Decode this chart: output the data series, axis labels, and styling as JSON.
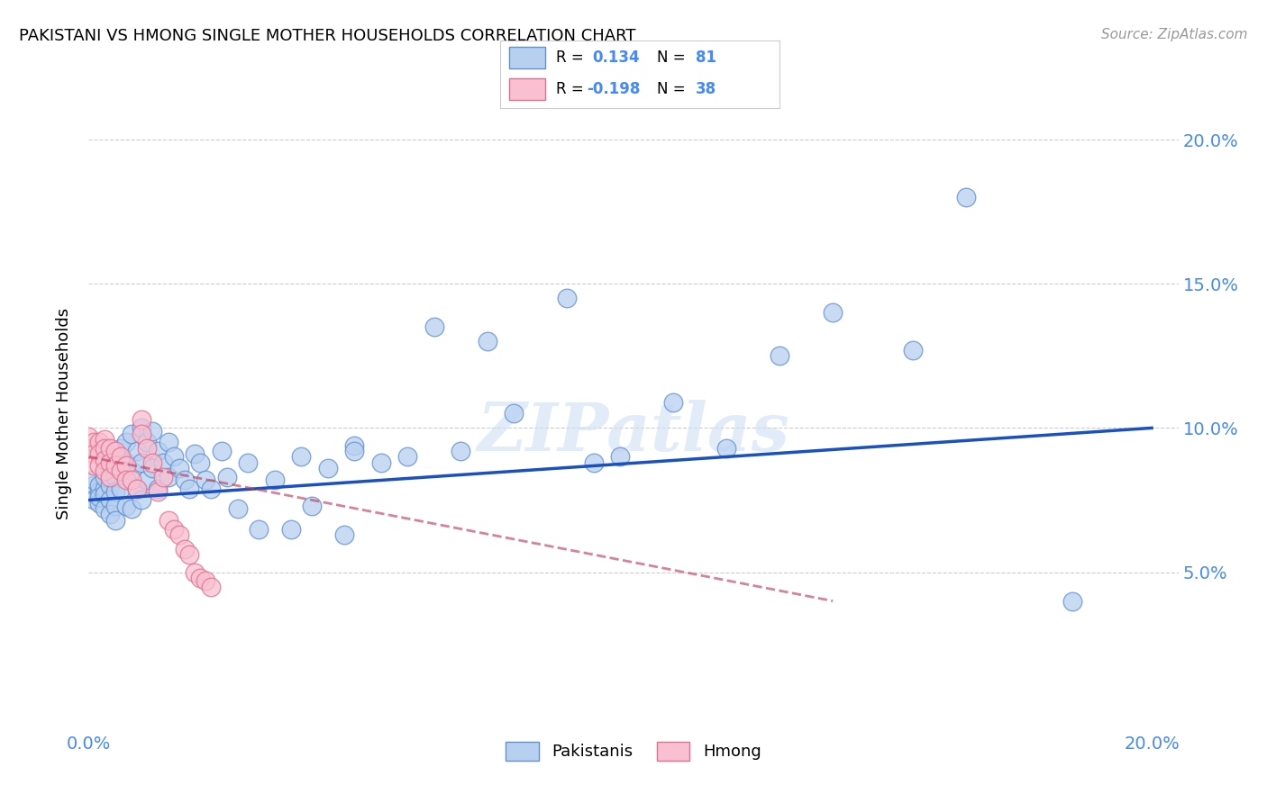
{
  "title": "PAKISTANI VS HMONG SINGLE MOTHER HOUSEHOLDS CORRELATION CHART",
  "source": "Source: ZipAtlas.com",
  "ylabel": "Single Mother Households",
  "watermark": "ZIPatlas",
  "pakistani_R": 0.134,
  "pakistani_N": 81,
  "hmong_R": -0.198,
  "hmong_N": 38,
  "pakistani_color": "#b8d0f0",
  "pakistani_edge": "#6090d0",
  "hmong_color": "#f8c0d0",
  "hmong_edge": "#e07090",
  "pakistani_line_color": "#1a50c0",
  "hmong_line_color": "#c04060",
  "xlim": [
    0.0,
    0.205
  ],
  "ylim": [
    -0.005,
    0.215
  ],
  "xtick_positions": [
    0.0,
    0.2
  ],
  "xtick_labels": [
    "0.0%",
    "20.0%"
  ],
  "ytick_positions": [
    0.05,
    0.1,
    0.15,
    0.2
  ],
  "ytick_labels": [
    "5.0%",
    "10.0%",
    "15.0%",
    "20.0%"
  ],
  "tick_color": "#4488ff",
  "pakistani_x": [
    0.001,
    0.001,
    0.001,
    0.002,
    0.002,
    0.002,
    0.002,
    0.003,
    0.003,
    0.003,
    0.003,
    0.003,
    0.004,
    0.004,
    0.004,
    0.004,
    0.005,
    0.005,
    0.005,
    0.005,
    0.005,
    0.006,
    0.006,
    0.006,
    0.007,
    0.007,
    0.007,
    0.008,
    0.008,
    0.008,
    0.009,
    0.009,
    0.01,
    0.01,
    0.01,
    0.011,
    0.011,
    0.012,
    0.012,
    0.013,
    0.013,
    0.014,
    0.015,
    0.015,
    0.016,
    0.017,
    0.018,
    0.019,
    0.02,
    0.021,
    0.022,
    0.023,
    0.025,
    0.026,
    0.028,
    0.03,
    0.032,
    0.035,
    0.038,
    0.04,
    0.042,
    0.045,
    0.048,
    0.05,
    0.055,
    0.06,
    0.065,
    0.07,
    0.075,
    0.08,
    0.09,
    0.095,
    0.1,
    0.11,
    0.12,
    0.13,
    0.14,
    0.155,
    0.165,
    0.185,
    0.05
  ],
  "pakistani_y": [
    0.08,
    0.075,
    0.082,
    0.078,
    0.074,
    0.08,
    0.076,
    0.085,
    0.079,
    0.077,
    0.083,
    0.072,
    0.088,
    0.08,
    0.075,
    0.07,
    0.09,
    0.083,
    0.078,
    0.073,
    0.068,
    0.093,
    0.086,
    0.079,
    0.095,
    0.088,
    0.073,
    0.098,
    0.085,
    0.072,
    0.092,
    0.079,
    0.1,
    0.088,
    0.075,
    0.095,
    0.082,
    0.099,
    0.086,
    0.092,
    0.079,
    0.088,
    0.095,
    0.083,
    0.09,
    0.086,
    0.082,
    0.079,
    0.091,
    0.088,
    0.082,
    0.079,
    0.092,
    0.083,
    0.072,
    0.088,
    0.065,
    0.082,
    0.065,
    0.09,
    0.073,
    0.086,
    0.063,
    0.094,
    0.088,
    0.09,
    0.135,
    0.092,
    0.13,
    0.105,
    0.145,
    0.088,
    0.09,
    0.109,
    0.093,
    0.125,
    0.14,
    0.127,
    0.18,
    0.04,
    0.092
  ],
  "hmong_x": [
    0.0,
    0.0,
    0.001,
    0.001,
    0.001,
    0.002,
    0.002,
    0.002,
    0.003,
    0.003,
    0.003,
    0.003,
    0.004,
    0.004,
    0.004,
    0.005,
    0.005,
    0.006,
    0.006,
    0.007,
    0.007,
    0.008,
    0.009,
    0.01,
    0.01,
    0.011,
    0.012,
    0.013,
    0.014,
    0.015,
    0.016,
    0.017,
    0.018,
    0.019,
    0.02,
    0.021,
    0.022,
    0.023
  ],
  "hmong_y": [
    0.097,
    0.093,
    0.095,
    0.091,
    0.087,
    0.095,
    0.091,
    0.087,
    0.096,
    0.093,
    0.089,
    0.085,
    0.093,
    0.088,
    0.083,
    0.092,
    0.087,
    0.09,
    0.085,
    0.087,
    0.082,
    0.082,
    0.079,
    0.103,
    0.098,
    0.093,
    0.088,
    0.078,
    0.083,
    0.068,
    0.065,
    0.063,
    0.058,
    0.056,
    0.05,
    0.048,
    0.047,
    0.045
  ],
  "pak_line_x": [
    0.0,
    0.2
  ],
  "pak_line_y": [
    0.075,
    0.1
  ],
  "hmong_line_x": [
    0.0,
    0.14
  ],
  "hmong_line_y": [
    0.09,
    0.04
  ]
}
